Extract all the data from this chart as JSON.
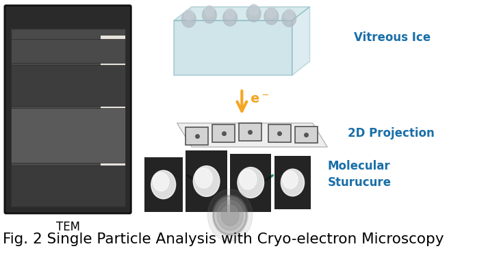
{
  "title": "Fig. 2 Single Particle Analysis with Cryo-electron Microscopy",
  "title_fontsize": 15.5,
  "title_color": "#000000",
  "label_vitreous_ice": "Vitreous Ice",
  "label_2d_projection": "2D Projection",
  "label_molecular_structure": "Molecular\nSturucure",
  "label_tem": "TEM",
  "label_color_blue": "#1a6fa8",
  "label_color_black": "#000000",
  "ice_box_color": "#a8d0d8",
  "ice_box_edge_color": "#7ab0bc",
  "arrow_color": "#f5a623",
  "electron_color": "#f5a623",
  "teal_arrow_color": "#2a8a7a",
  "bg_color": "#ffffff",
  "figure_width": 7.1,
  "figure_height": 3.7
}
